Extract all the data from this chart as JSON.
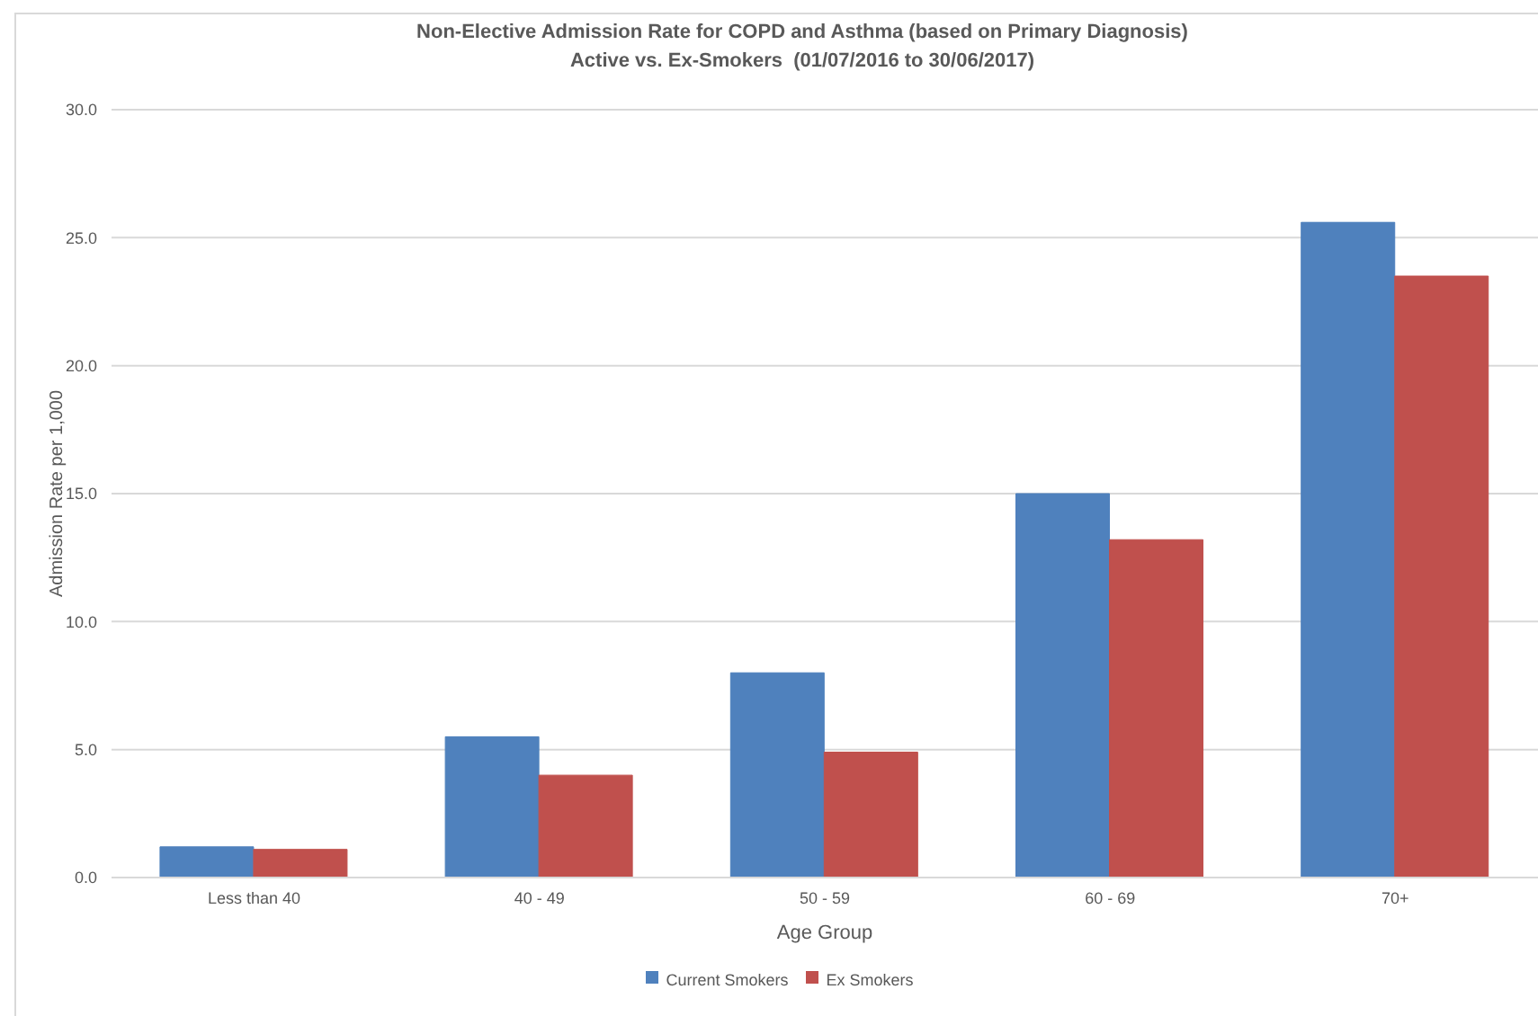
{
  "chart_data": {
    "type": "bar",
    "title": "Non-Elective Admission Rate for COPD and Asthma (based on Primary Diagnosis)",
    "subtitle": "Active vs. Ex-Smokers  (01/07/2016 to 30/06/2017)",
    "xlabel": "Age Group",
    "ylabel": "Admission Rate per 1,000",
    "categories": [
      "Less than 40",
      "40 - 49",
      "50 - 59",
      "60 - 69",
      "70+"
    ],
    "series": [
      {
        "name": "Current Smokers",
        "color": "#4f81bd",
        "values": [
          1.2,
          5.5,
          8.0,
          15.0,
          25.6
        ]
      },
      {
        "name": "Ex Smokers",
        "color": "#c0504d",
        "values": [
          1.1,
          4.0,
          4.9,
          13.2,
          23.5
        ]
      }
    ],
    "ylim": [
      0,
      30
    ],
    "yticks": [
      {
        "value": 0,
        "label": "0.0"
      },
      {
        "value": 5,
        "label": "5.0"
      },
      {
        "value": 10,
        "label": "10.0"
      },
      {
        "value": 15,
        "label": "15.0"
      },
      {
        "value": 20,
        "label": "20.0"
      },
      {
        "value": 25,
        "label": "25.0"
      },
      {
        "value": 30,
        "label": "30.0"
      }
    ],
    "grid": "y",
    "legend": "bottom"
  }
}
